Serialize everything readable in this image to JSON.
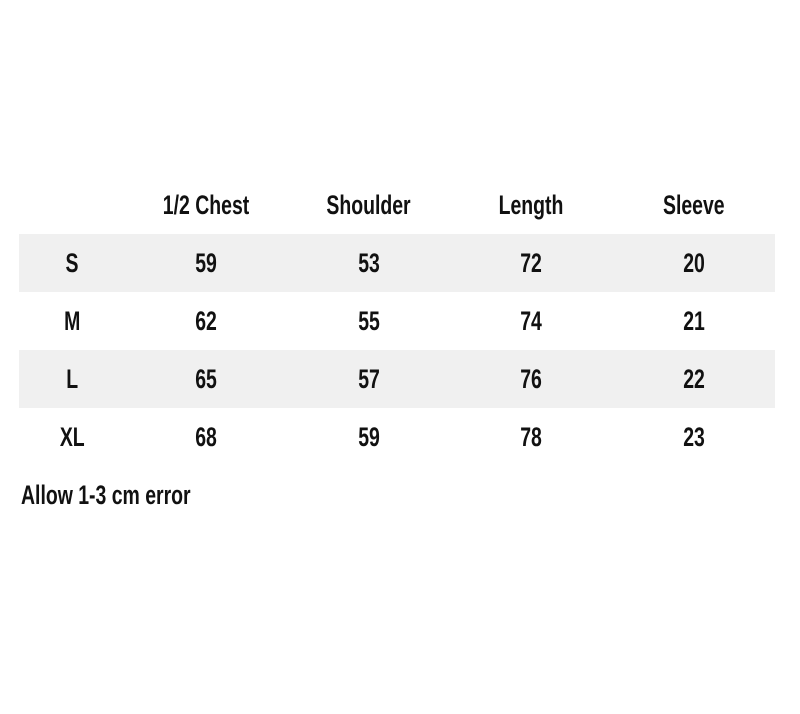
{
  "chart_data": {
    "type": "table",
    "columns": [
      "",
      "1/2 Chest",
      "Shoulder",
      "Length",
      "Sleeve"
    ],
    "rows": [
      [
        "S",
        59,
        53,
        72,
        20
      ],
      [
        "M",
        62,
        55,
        74,
        21
      ],
      [
        "L",
        65,
        57,
        76,
        22
      ],
      [
        "XL",
        68,
        59,
        78,
        23
      ]
    ],
    "striped_row_indexes": [
      0,
      2
    ]
  },
  "note": "Allow 1-3 cm error",
  "colors": {
    "stripe": "#f0f0f0",
    "text": "#111111",
    "page_background": "#ffffff"
  }
}
